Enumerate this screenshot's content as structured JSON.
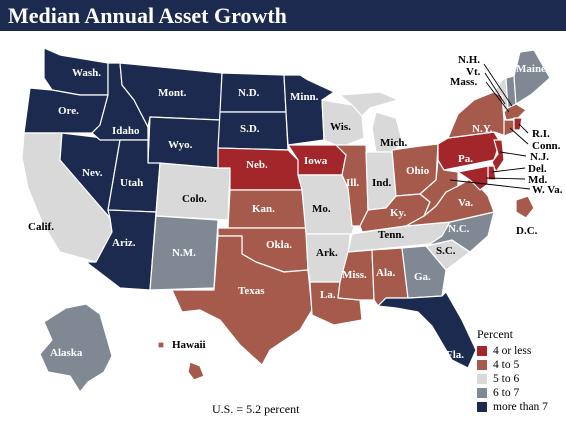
{
  "title": "Median Annual Asset Growth",
  "legend": {
    "title": "Percent",
    "items": [
      {
        "label": "4 or less",
        "color": "#a3262a"
      },
      {
        "label": "4 to 5",
        "color": "#a65a4c"
      },
      {
        "label": "5 to 6",
        "color": "#d9d9d9"
      },
      {
        "label": "6 to 7",
        "color": "#7f8893"
      },
      {
        "label": "more than 7",
        "color": "#1b2a4e"
      }
    ]
  },
  "footnote": "U.S. = 5.2 percent",
  "states": [
    {
      "id": "wa",
      "label": "Wash.",
      "category": "more than 7"
    },
    {
      "id": "or",
      "label": "Ore.",
      "category": "more than 7"
    },
    {
      "id": "ca",
      "label": "Calif.",
      "category": "5 to 6"
    },
    {
      "id": "nv",
      "label": "Nev.",
      "category": "more than 7"
    },
    {
      "id": "id",
      "label": "Idaho",
      "category": "more than 7"
    },
    {
      "id": "mt",
      "label": "Mont.",
      "category": "more than 7"
    },
    {
      "id": "wy",
      "label": "Wyo.",
      "category": "more than 7"
    },
    {
      "id": "ut",
      "label": "Utah",
      "category": "more than 7"
    },
    {
      "id": "az",
      "label": "Ariz.",
      "category": "more than 7"
    },
    {
      "id": "co",
      "label": "Colo.",
      "category": "5 to 6"
    },
    {
      "id": "nm",
      "label": "N.M.",
      "category": "6 to 7"
    },
    {
      "id": "nd",
      "label": "N.D.",
      "category": "more than 7"
    },
    {
      "id": "sd",
      "label": "S.D.",
      "category": "more than 7"
    },
    {
      "id": "ne",
      "label": "Neb.",
      "category": "4 or less"
    },
    {
      "id": "ks",
      "label": "Kan.",
      "category": "4 to 5"
    },
    {
      "id": "ok",
      "label": "Okla.",
      "category": "4 to 5"
    },
    {
      "id": "tx",
      "label": "Texas",
      "category": "4 to 5"
    },
    {
      "id": "mn",
      "label": "Minn.",
      "category": "more than 7"
    },
    {
      "id": "ia",
      "label": "Iowa",
      "category": "4 or less"
    },
    {
      "id": "mo",
      "label": "Mo.",
      "category": "5 to 6"
    },
    {
      "id": "ar",
      "label": "Ark.",
      "category": "5 to 6"
    },
    {
      "id": "la",
      "label": "La.",
      "category": "4 to 5"
    },
    {
      "id": "wi",
      "label": "Wis.",
      "category": "5 to 6"
    },
    {
      "id": "il",
      "label": "Ill.",
      "category": "4 to 5"
    },
    {
      "id": "mi",
      "label": "Mich.",
      "category": "5 to 6"
    },
    {
      "id": "in",
      "label": "Ind.",
      "category": "5 to 6"
    },
    {
      "id": "oh",
      "label": "Ohio",
      "category": "4 to 5"
    },
    {
      "id": "ky",
      "label": "Ky.",
      "category": "4 to 5"
    },
    {
      "id": "tn",
      "label": "Tenn.",
      "category": "5 to 6"
    },
    {
      "id": "ms",
      "label": "Miss.",
      "category": "4 to 5"
    },
    {
      "id": "al",
      "label": "Ala.",
      "category": "4 to 5"
    },
    {
      "id": "ga",
      "label": "Ga.",
      "category": "6 to 7"
    },
    {
      "id": "fl",
      "label": "Fla.",
      "category": "more than 7"
    },
    {
      "id": "sc",
      "label": "S.C.",
      "category": "5 to 6"
    },
    {
      "id": "nc",
      "label": "N.C.",
      "category": "6 to 7"
    },
    {
      "id": "va",
      "label": "Va.",
      "category": "4 to 5"
    },
    {
      "id": "wv",
      "label": "W. Va.",
      "category": "4 to 5"
    },
    {
      "id": "pa",
      "label": "Pa.",
      "category": "4 or less"
    },
    {
      "id": "ny",
      "label": "N.Y.",
      "category": "4 to 5"
    },
    {
      "id": "vt",
      "label": "Vt.",
      "category": "5 to 6"
    },
    {
      "id": "nh",
      "label": "N.H.",
      "category": "6 to 7"
    },
    {
      "id": "me",
      "label": "Maine",
      "category": "6 to 7"
    },
    {
      "id": "ma",
      "label": "Mass.",
      "category": "4 to 5"
    },
    {
      "id": "ri",
      "label": "R.I.",
      "category": "4 or less"
    },
    {
      "id": "ct",
      "label": "Conn.",
      "category": "4 to 5"
    },
    {
      "id": "nj",
      "label": "N.J.",
      "category": "4 or less"
    },
    {
      "id": "de",
      "label": "Del.",
      "category": "4 or less"
    },
    {
      "id": "md",
      "label": "Md.",
      "category": "4 or less"
    },
    {
      "id": "dc",
      "label": "D.C.",
      "category": "4 to 5"
    },
    {
      "id": "ak",
      "label": "Alaska",
      "category": "6 to 7"
    },
    {
      "id": "hi",
      "label": "Hawaii",
      "category": "4 to 5"
    }
  ]
}
